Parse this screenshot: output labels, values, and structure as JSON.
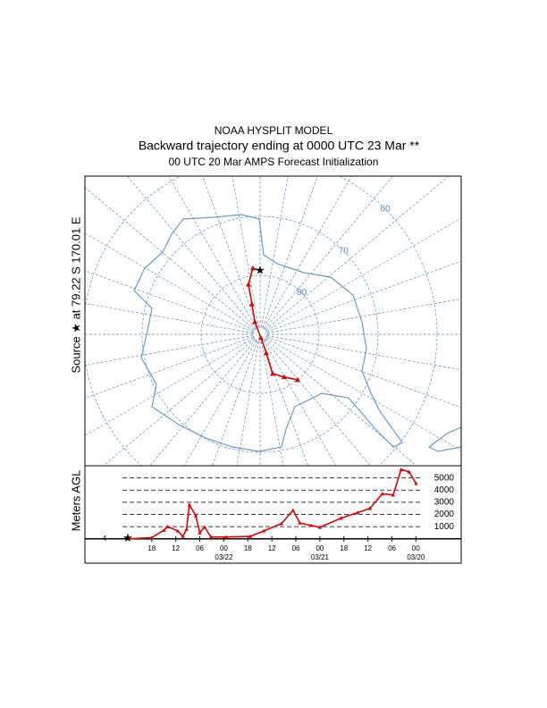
{
  "header": {
    "title": "NOAA HYSPLIT MODEL",
    "subtitle": "Backward trajectory ending at 0000 UTC 23 Mar **",
    "note": "00 UTC 20 Mar    AMPS  Forecast Initialization"
  },
  "map": {
    "source_label": "Source ★ at   79.22 S  170.01 E",
    "source": {
      "lat": -79.22,
      "lon": 170.01
    },
    "latitude_labels": [
      {
        "value": -60,
        "label": "60"
      },
      {
        "value": -70,
        "label": "70"
      },
      {
        "value": -80,
        "label": "80"
      }
    ],
    "trajectory": {
      "color": "#e00000",
      "lat": [
        -79.22,
        -78.7,
        -81.3,
        -84.7,
        -87.7,
        -89.4,
        -86.7,
        -83.0,
        -81.7,
        -80.0
      ],
      "lon": [
        170.01,
        163.8,
        156.9,
        155.0,
        147.0,
        -24.0,
        -28.4,
        -27.6,
        -39.4,
        -49.5
      ]
    }
  },
  "chart_data": {
    "type": "line",
    "y_label": "Meters AGL",
    "start_label": "4",
    "x": [
      0,
      6,
      9,
      10,
      12.5,
      13.8,
      14.7,
      15.4,
      17,
      18,
      19.2,
      20.8,
      24.6,
      30.6,
      34,
      38.4,
      41.3,
      43,
      45.8,
      48,
      53.3,
      57.4,
      60.5,
      63.6,
      66.3,
      68.3,
      70.3,
      72
    ],
    "series": [
      {
        "color": "#e00000",
        "values": [
          0,
          100,
          700,
          1000,
          650,
          200,
          800,
          2800,
          1900,
          500,
          950,
          150,
          150,
          200,
          650,
          1250,
          2350,
          1300,
          1100,
          950,
          1700,
          2150,
          2500,
          3700,
          3600,
          5700,
          5500,
          4550
        ]
      }
    ],
    "xlim": [
      -10.7,
      83.3
    ],
    "ylim": [
      -2000,
      6000
    ],
    "yticks": [
      1000,
      2000,
      3000,
      4000,
      5000
    ],
    "xticks": [
      {
        "value": 6,
        "label": "18"
      },
      {
        "value": 12,
        "label": "12"
      },
      {
        "value": 18,
        "label": "06"
      },
      {
        "value": 24,
        "label": "00"
      },
      {
        "value": 30,
        "label": "18"
      },
      {
        "value": 36,
        "label": "12"
      },
      {
        "value": 42,
        "label": "06"
      },
      {
        "value": 48,
        "label": "00"
      },
      {
        "value": 54,
        "label": "18"
      },
      {
        "value": 60,
        "label": "12"
      },
      {
        "value": 66,
        "label": "06"
      },
      {
        "value": 72,
        "label": "00"
      }
    ],
    "date_ticks": [
      {
        "value": 24,
        "label": "03/22"
      },
      {
        "value": 48,
        "label": "03/21"
      },
      {
        "value": 72,
        "label": "03/20"
      }
    ]
  }
}
